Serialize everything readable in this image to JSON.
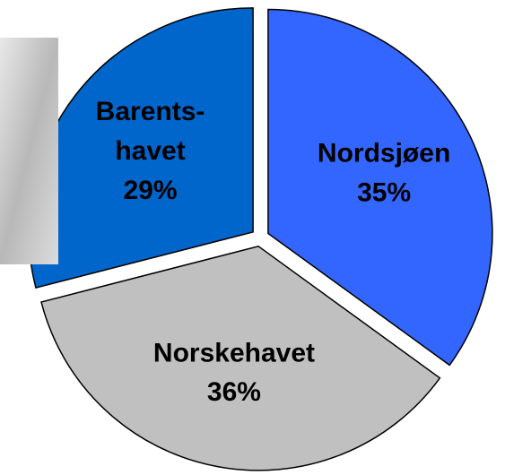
{
  "chart_data": {
    "type": "pie",
    "categories": [
      "Nordsjøen",
      "Norskehavet",
      "Barents-\nhavet"
    ],
    "values": [
      35,
      36,
      29
    ],
    "value_labels": [
      "35%",
      "36%",
      "29%"
    ],
    "colors": [
      "#3366ff",
      "#c0c0c0",
      "#0066cc"
    ]
  }
}
